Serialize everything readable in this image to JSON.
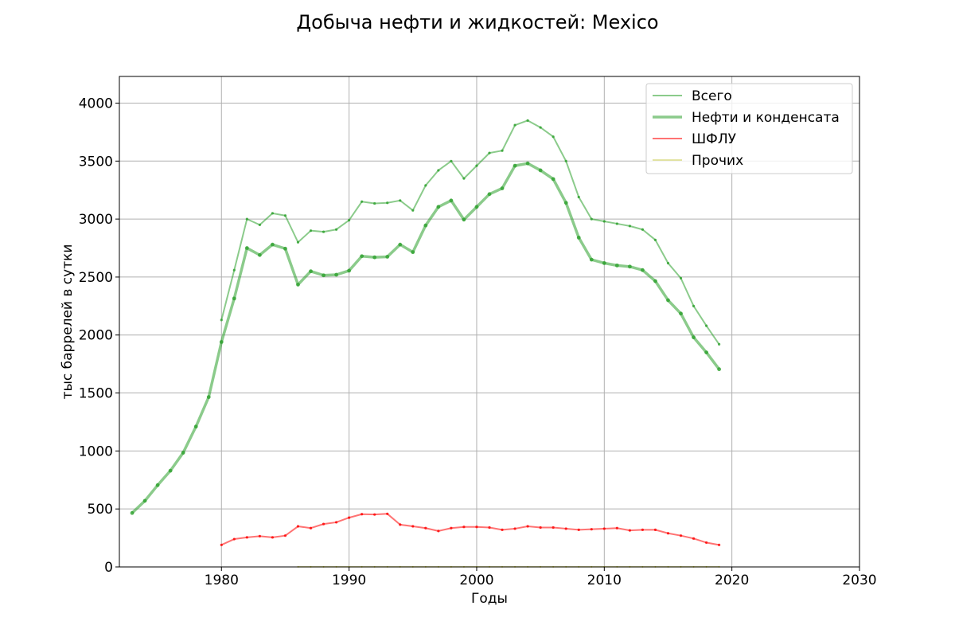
{
  "chart_data": {
    "type": "line",
    "title": "Добыча нефти и жидкостей: Mexico",
    "xlabel": "Годы",
    "ylabel": "тыс баррелей в сутки",
    "xlim": [
      1972,
      2030
    ],
    "ylim": [
      0,
      4230
    ],
    "xticks": [
      1980,
      1990,
      2000,
      2010,
      2020,
      2030
    ],
    "yticks": [
      0,
      500,
      1000,
      1500,
      2000,
      2500,
      3000,
      3500,
      4000
    ],
    "grid": true,
    "legend_position": "top-right",
    "series": [
      {
        "name": "Всего",
        "color": "#2ca02c",
        "start_year": 1980,
        "values": [
          2130,
          2560,
          3000,
          2950,
          3050,
          3030,
          2800,
          2900,
          2890,
          2910,
          2990,
          3150,
          3135,
          3140,
          3160,
          3075,
          3290,
          3420,
          3500,
          3350,
          3460,
          3570,
          3590,
          3810,
          3850,
          3790,
          3710,
          3500,
          3190,
          3000,
          2980,
          2960,
          2940,
          2910,
          2820,
          2620,
          2490,
          2250,
          2080,
          1920
        ]
      },
      {
        "name": "Нефти и конденсата",
        "color": "#2ca02c",
        "start_year": 1973,
        "values": [
          465,
          570,
          705,
          830,
          985,
          1210,
          1465,
          1940,
          2315,
          2750,
          2690,
          2780,
          2745,
          2435,
          2550,
          2515,
          2520,
          2555,
          2680,
          2670,
          2675,
          2780,
          2715,
          2945,
          3105,
          3160,
          2995,
          3105,
          3215,
          3265,
          3460,
          3480,
          3420,
          3345,
          3140,
          2840,
          2650,
          2620,
          2600,
          2590,
          2560,
          2465,
          2300,
          2185,
          1980,
          1850,
          1705
        ]
      },
      {
        "name": "ШФЛУ",
        "color": "#ff0000",
        "start_year": 1980,
        "values": [
          190,
          240,
          255,
          265,
          255,
          270,
          350,
          335,
          370,
          385,
          425,
          455,
          452,
          458,
          365,
          350,
          335,
          310,
          335,
          345,
          345,
          340,
          320,
          330,
          350,
          340,
          340,
          330,
          320,
          325,
          330,
          335,
          315,
          320,
          320,
          290,
          270,
          245,
          210,
          190
        ]
      },
      {
        "name": "Прочих",
        "color": "#bcbd22",
        "start_year": 1986,
        "values": [
          1,
          1,
          1,
          1,
          1,
          1,
          1,
          1,
          1,
          1,
          1,
          1,
          1,
          1,
          1,
          1,
          1,
          1,
          1,
          1,
          1,
          1,
          1,
          1,
          1,
          1,
          1,
          1,
          1,
          1,
          1,
          1,
          1,
          1
        ]
      }
    ]
  }
}
